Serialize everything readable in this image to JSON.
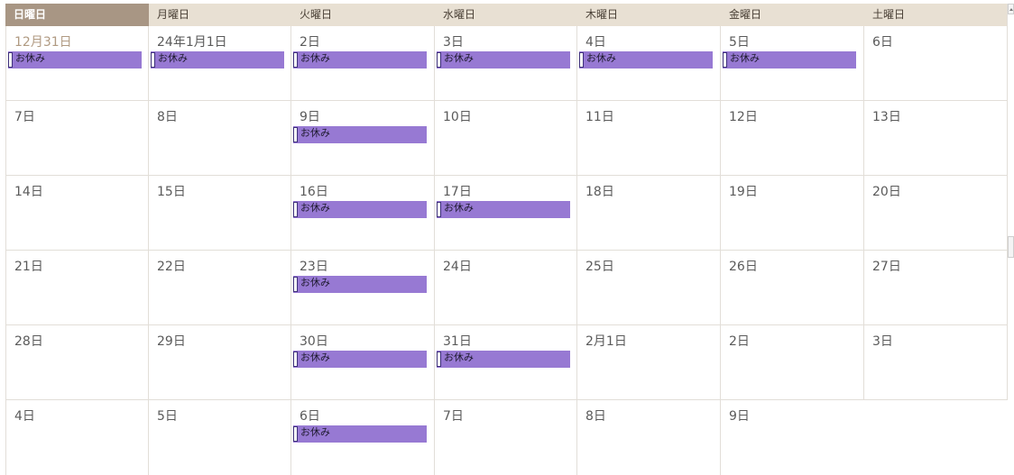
{
  "weekdays": [
    "日曜日",
    "月曜日",
    "火曜日",
    "水曜日",
    "木曜日",
    "金曜日",
    "土曜日"
  ],
  "active_weekday_index": 0,
  "event_label": "お休み",
  "colors": {
    "event": "#9779d3",
    "header": "#e8e0d3",
    "header_active": "#a89684"
  },
  "weeks": [
    [
      {
        "date": "12月31日",
        "other_month": true,
        "event": true
      },
      {
        "date": "24年1月1日",
        "event": true
      },
      {
        "date": "2日",
        "event": true
      },
      {
        "date": "3日",
        "event": true
      },
      {
        "date": "4日",
        "event": true
      },
      {
        "date": "5日",
        "event": true
      },
      {
        "date": "6日",
        "event": false
      }
    ],
    [
      {
        "date": "7日",
        "event": false
      },
      {
        "date": "8日",
        "event": false
      },
      {
        "date": "9日",
        "event": true
      },
      {
        "date": "10日",
        "event": false
      },
      {
        "date": "11日",
        "event": false
      },
      {
        "date": "12日",
        "event": false
      },
      {
        "date": "13日",
        "event": false
      }
    ],
    [
      {
        "date": "14日",
        "event": false
      },
      {
        "date": "15日",
        "event": false
      },
      {
        "date": "16日",
        "event": true
      },
      {
        "date": "17日",
        "event": true
      },
      {
        "date": "18日",
        "event": false
      },
      {
        "date": "19日",
        "event": false
      },
      {
        "date": "20日",
        "event": false
      }
    ],
    [
      {
        "date": "21日",
        "event": false
      },
      {
        "date": "22日",
        "event": false
      },
      {
        "date": "23日",
        "event": true
      },
      {
        "date": "24日",
        "event": false
      },
      {
        "date": "25日",
        "event": false
      },
      {
        "date": "26日",
        "event": false
      },
      {
        "date": "27日",
        "event": false
      }
    ],
    [
      {
        "date": "28日",
        "event": false
      },
      {
        "date": "29日",
        "event": false
      },
      {
        "date": "30日",
        "event": true
      },
      {
        "date": "31日",
        "event": true
      },
      {
        "date": "2月1日",
        "event": false
      },
      {
        "date": "2日",
        "event": false
      },
      {
        "date": "3日",
        "event": false
      }
    ],
    [
      {
        "date": "4日",
        "event": false
      },
      {
        "date": "5日",
        "event": false
      },
      {
        "date": "6日",
        "event": true
      },
      {
        "date": "7日",
        "event": false
      },
      {
        "date": "8日",
        "event": false
      },
      {
        "date": "9日",
        "event": false
      }
    ]
  ]
}
